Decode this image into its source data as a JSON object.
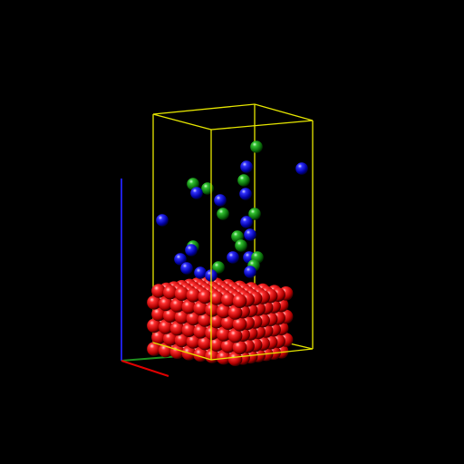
{
  "title": "",
  "colors": {
    "background": "#000000",
    "cell_edges": "#e6e600",
    "axis_x": "#e00000",
    "axis_y": "#1f8f1f",
    "axis_z": "#1f1fe0",
    "atom_red": "#e01010",
    "atom_blue": "#1010e6",
    "atom_green": "#1a9a1a"
  },
  "structure": {
    "description_visible": false,
    "slab_layers": 6,
    "slab_rows": 7,
    "slab_cols": 8,
    "adsorbate_count_blue": 16,
    "adsorbate_count_green": 12
  }
}
